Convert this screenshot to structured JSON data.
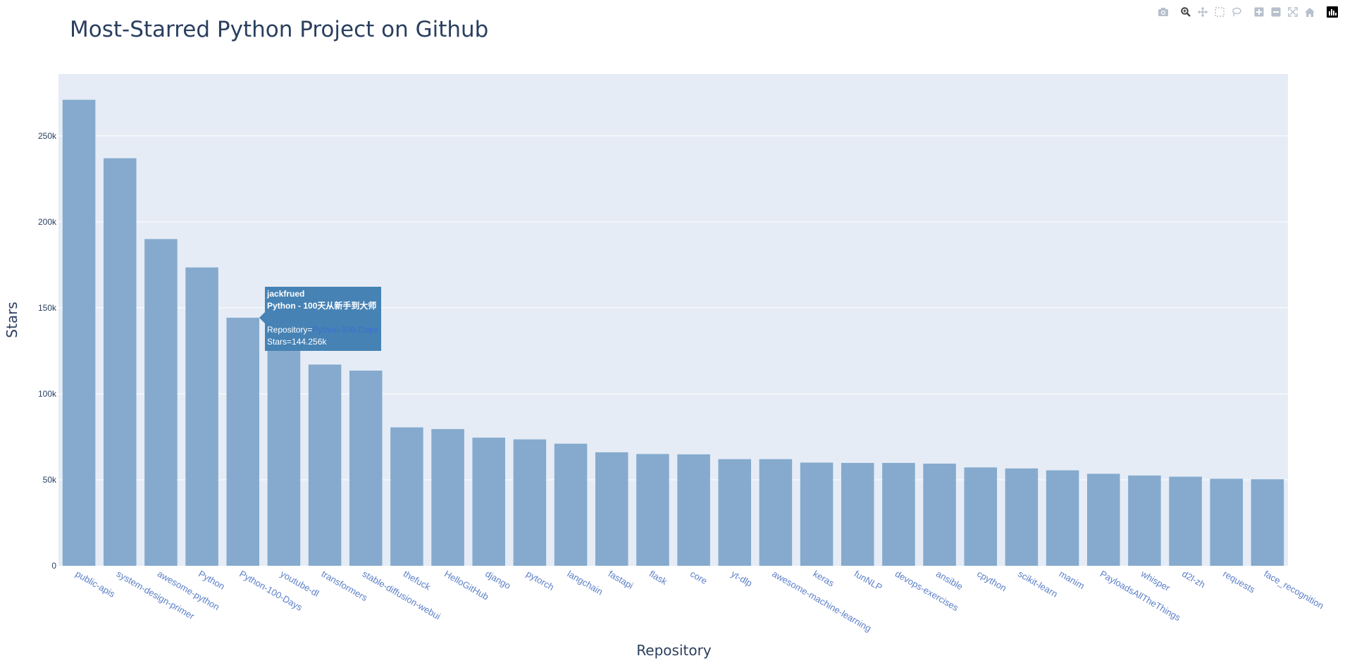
{
  "title": "Most-Starred Python Project on Github",
  "colors": {
    "bar": "#85aacd",
    "plot_bg": "#e5ecf6",
    "grid": "#ffffff",
    "text": "#2a3f5f",
    "tick_x": "#5b7fc9",
    "tooltip_bg": "#4682b4"
  },
  "modebar": {
    "icons": [
      "camera-icon",
      "zoom-icon",
      "pan-icon",
      "box-select-icon",
      "lasso-icon",
      "zoom-in-icon",
      "zoom-out-icon",
      "autoscale-icon",
      "reset-axes-icon",
      "plotly-logo-icon"
    ]
  },
  "tooltip": {
    "line1": "jackfrued",
    "line2": "Python - 100天从新手到大师",
    "repo_label": "Repository=",
    "repo_value": "Python-100-Days",
    "stars_label": "Stars=144.256k"
  },
  "chart_data": {
    "type": "bar",
    "title": "Most-Starred Python Project on Github",
    "xlabel": "Repository",
    "ylabel": "Stars",
    "ylim": [
      0,
      286000
    ],
    "y_ticks": [
      0,
      50000,
      100000,
      150000,
      200000,
      250000
    ],
    "y_tick_labels": [
      "0",
      "50k",
      "100k",
      "150k",
      "200k",
      "250k"
    ],
    "grid": true,
    "categories": [
      "public-apis",
      "system-design-primer",
      "awesome-python",
      "Python",
      "Python-100-Days",
      "youtube-dl",
      "transformers",
      "stable-diffusion-webui",
      "thefuck",
      "HelloGitHub",
      "django",
      "pytorch",
      "langchain",
      "fastapi",
      "flask",
      "core",
      "yt-dlp",
      "awesome-machine-learning",
      "keras",
      "funNLP",
      "devops-exercises",
      "ansible",
      "cpython",
      "scikit-learn",
      "manim",
      "PayloadsAllTheThings",
      "whisper",
      "d2l-zh",
      "requests",
      "face_recognition"
    ],
    "values": [
      271000,
      237000,
      190000,
      173500,
      144256,
      125500,
      117000,
      113500,
      80500,
      79500,
      74500,
      73500,
      71000,
      66000,
      65000,
      64800,
      62000,
      62000,
      60000,
      59800,
      59800,
      59400,
      57200,
      56600,
      55500,
      53500,
      52500,
      51800,
      50600,
      50300
    ]
  }
}
